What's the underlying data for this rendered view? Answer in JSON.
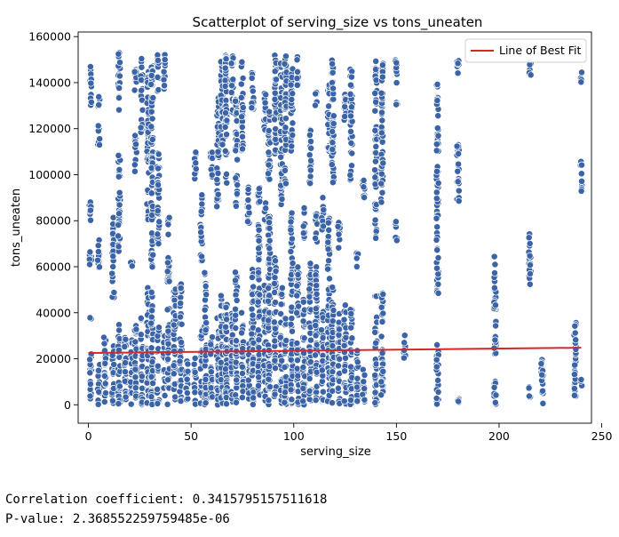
{
  "chart_data": {
    "type": "scatter",
    "title": "Scatterplot of serving_size vs tons_uneaten",
    "xlabel": "serving_size",
    "ylabel": "tons_uneaten",
    "xlim": [
      -5,
      245
    ],
    "ylim": [
      -8000,
      162000
    ],
    "xticks": [
      0,
      50,
      100,
      150,
      200,
      250
    ],
    "yticks": [
      0,
      20000,
      40000,
      60000,
      80000,
      100000,
      120000,
      140000,
      160000
    ],
    "grid": false,
    "legend": {
      "location": "top-right",
      "entries": [
        "Line of Best Fit"
      ]
    },
    "marker_color": "#3a63a8",
    "line_color": "#d62728",
    "line_of_best_fit": {
      "x": [
        0,
        240
      ],
      "y": [
        22500,
        24800
      ]
    },
    "clusters": [
      {
        "x": 1,
        "ranges": [
          [
            0,
            24000
          ],
          [
            37000,
            38000
          ],
          [
            58000,
            70000
          ],
          [
            80000,
            90000
          ],
          [
            130000,
            147000
          ]
        ]
      },
      {
        "x": 5,
        "ranges": [
          [
            0,
            22000
          ],
          [
            58000,
            72000
          ],
          [
            112000,
            122000
          ],
          [
            128000,
            136000
          ]
        ]
      },
      {
        "x": 8,
        "ranges": [
          [
            0,
            30000
          ]
        ]
      },
      {
        "x": 12,
        "ranges": [
          [
            0,
            28000
          ],
          [
            45000,
            82000
          ]
        ]
      },
      {
        "x": 15,
        "ranges": [
          [
            0,
            35000
          ],
          [
            66000,
            110000
          ],
          [
            128000,
            154000
          ]
        ]
      },
      {
        "x": 18,
        "ranges": [
          [
            0,
            32000
          ]
        ]
      },
      {
        "x": 21,
        "ranges": [
          [
            0,
            30000
          ],
          [
            57000,
            62000
          ]
        ]
      },
      {
        "x": 23,
        "ranges": [
          [
            0,
            35000
          ],
          [
            100000,
            118000
          ],
          [
            134000,
            146000
          ]
        ]
      },
      {
        "x": 26,
        "ranges": [
          [
            0,
            42000
          ],
          [
            118000,
            152000
          ]
        ]
      },
      {
        "x": 29,
        "ranges": [
          [
            0,
            52000
          ],
          [
            80000,
            145000
          ]
        ]
      },
      {
        "x": 31,
        "ranges": [
          [
            0,
            52000
          ],
          [
            58000,
            150000
          ]
        ]
      },
      {
        "x": 34,
        "ranges": [
          [
            0,
            36000
          ],
          [
            66000,
            110000
          ],
          [
            135000,
            152000
          ]
        ]
      },
      {
        "x": 37,
        "ranges": [
          [
            0,
            30000
          ],
          [
            137000,
            153000
          ]
        ]
      },
      {
        "x": 39,
        "ranges": [
          [
            0,
            42000
          ],
          [
            50000,
            82000
          ]
        ]
      },
      {
        "x": 42,
        "ranges": [
          [
            0,
            52000
          ]
        ]
      },
      {
        "x": 45,
        "ranges": [
          [
            0,
            54000
          ]
        ]
      },
      {
        "x": 48,
        "ranges": [
          [
            0,
            20000
          ]
        ]
      },
      {
        "x": 52,
        "ranges": [
          [
            0,
            24000
          ],
          [
            98000,
            110000
          ]
        ]
      },
      {
        "x": 55,
        "ranges": [
          [
            0,
            36000
          ],
          [
            62000,
            92000
          ]
        ]
      },
      {
        "x": 57,
        "ranges": [
          [
            0,
            58000
          ]
        ]
      },
      {
        "x": 60,
        "ranges": [
          [
            0,
            30000
          ],
          [
            98000,
            110000
          ]
        ]
      },
      {
        "x": 63,
        "ranges": [
          [
            0,
            40000
          ],
          [
            86000,
            134000
          ]
        ]
      },
      {
        "x": 65,
        "ranges": [
          [
            0,
            48000
          ],
          [
            110000,
            150000
          ]
        ]
      },
      {
        "x": 67,
        "ranges": [
          [
            0,
            45000
          ],
          [
            95000,
            152000
          ]
        ]
      },
      {
        "x": 70,
        "ranges": [
          [
            0,
            42000
          ],
          [
            126000,
            152000
          ]
        ]
      },
      {
        "x": 72,
        "ranges": [
          [
            0,
            58000
          ],
          [
            86000,
            134000
          ]
        ]
      },
      {
        "x": 75,
        "ranges": [
          [
            0,
            40000
          ],
          [
            110000,
            150000
          ]
        ]
      },
      {
        "x": 78,
        "ranges": [
          [
            0,
            28000
          ],
          [
            76000,
            95000
          ]
        ]
      },
      {
        "x": 80,
        "ranges": [
          [
            0,
            60000
          ],
          [
            128000,
            146000
          ]
        ]
      },
      {
        "x": 83,
        "ranges": [
          [
            0,
            80000
          ],
          [
            86000,
            98000
          ]
        ]
      },
      {
        "x": 86,
        "ranges": [
          [
            0,
            52000
          ],
          [
            80000,
            88000
          ],
          [
            118000,
            136000
          ]
        ]
      },
      {
        "x": 88,
        "ranges": [
          [
            0,
            82000
          ],
          [
            96000,
            130000
          ]
        ]
      },
      {
        "x": 91,
        "ranges": [
          [
            0,
            64000
          ],
          [
            108000,
            153000
          ]
        ]
      },
      {
        "x": 94,
        "ranges": [
          [
            0,
            52000
          ],
          [
            86000,
            150000
          ]
        ]
      },
      {
        "x": 96,
        "ranges": [
          [
            0,
            38000
          ],
          [
            96000,
            152000
          ]
        ]
      },
      {
        "x": 99,
        "ranges": [
          [
            0,
            84000
          ],
          [
            110000,
            146000
          ]
        ]
      },
      {
        "x": 102,
        "ranges": [
          [
            0,
            60000
          ],
          [
            136000,
            152000
          ]
        ]
      },
      {
        "x": 105,
        "ranges": [
          [
            0,
            48000
          ],
          [
            72000,
            86000
          ]
        ]
      },
      {
        "x": 108,
        "ranges": [
          [
            0,
            64000
          ],
          [
            96000,
            120000
          ]
        ]
      },
      {
        "x": 111,
        "ranges": [
          [
            0,
            60000
          ],
          [
            70000,
            84000
          ],
          [
            130000,
            136000
          ]
        ]
      },
      {
        "x": 114,
        "ranges": [
          [
            0,
            42000
          ],
          [
            76000,
            92000
          ]
        ]
      },
      {
        "x": 117,
        "ranges": [
          [
            0,
            82000
          ],
          [
            110000,
            140000
          ]
        ]
      },
      {
        "x": 119,
        "ranges": [
          [
            0,
            52000
          ],
          [
            96000,
            152000
          ]
        ]
      },
      {
        "x": 122,
        "ranges": [
          [
            0,
            40000
          ],
          [
            68000,
            80000
          ]
        ]
      },
      {
        "x": 125,
        "ranges": [
          [
            0,
            45000
          ],
          [
            118000,
            136000
          ]
        ]
      },
      {
        "x": 128,
        "ranges": [
          [
            0,
            42000
          ],
          [
            96000,
            146000
          ]
        ]
      },
      {
        "x": 131,
        "ranges": [
          [
            0,
            24000
          ],
          [
            60000,
            66000
          ]
        ]
      },
      {
        "x": 134,
        "ranges": [
          [
            0,
            16000
          ],
          [
            90000,
            104000
          ]
        ]
      },
      {
        "x": 140,
        "ranges": [
          [
            0,
            48000
          ],
          [
            72000,
            150000
          ]
        ]
      },
      {
        "x": 143,
        "ranges": [
          [
            0,
            52000
          ],
          [
            82000,
            150000
          ]
        ]
      },
      {
        "x": 150,
        "ranges": [
          [
            70000,
            80000
          ],
          [
            130000,
            150000
          ]
        ]
      },
      {
        "x": 154,
        "ranges": [
          [
            20000,
            32000
          ]
        ]
      },
      {
        "x": 170,
        "ranges": [
          [
            0,
            28000
          ],
          [
            48000,
            104000
          ],
          [
            110000,
            141000
          ]
        ]
      },
      {
        "x": 180,
        "ranges": [
          [
            0,
            6000
          ],
          [
            85000,
            115000
          ],
          [
            143000,
            152000
          ]
        ]
      },
      {
        "x": 198,
        "ranges": [
          [
            0,
            12000
          ],
          [
            20000,
            65000
          ]
        ]
      },
      {
        "x": 215,
        "ranges": [
          [
            2000,
            8000
          ],
          [
            52000,
            77000
          ],
          [
            140000,
            150000
          ]
        ]
      },
      {
        "x": 221,
        "ranges": [
          [
            0,
            20000
          ]
        ]
      },
      {
        "x": 237,
        "ranges": [
          [
            0,
            39000
          ]
        ]
      },
      {
        "x": 240,
        "ranges": [
          [
            8000,
            12000
          ],
          [
            92000,
            106000
          ],
          [
            140000,
            148000
          ]
        ]
      }
    ]
  },
  "output": {
    "correlation_line": "Correlation coefficient: 0.3415795157511618",
    "pvalue_line": "P-value: 2.368552259759485e-06"
  }
}
